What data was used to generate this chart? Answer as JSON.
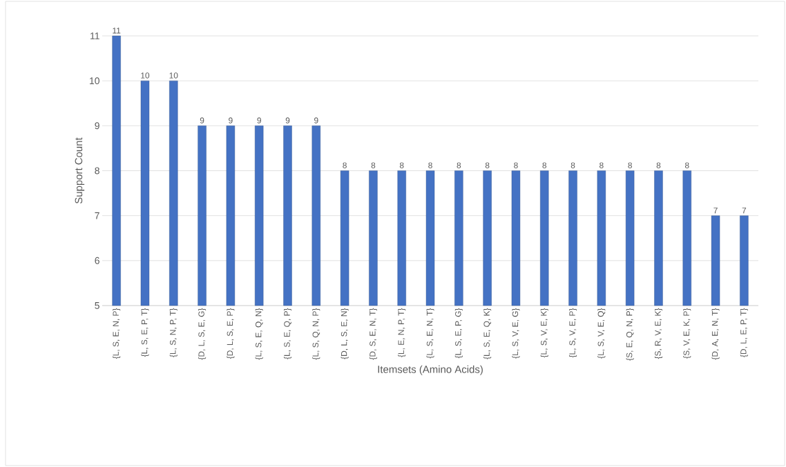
{
  "chart_data": {
    "type": "bar",
    "xlabel": "Itemsets (Amino Acids)",
    "ylabel": "Support Count",
    "categories": [
      "{L, S, E, N, P}",
      "{L, S, E, P, T}",
      "{L, S, N, P, T}",
      "{D, L, S, E, G}",
      "{D, L, S, E, P}",
      "{L, S, E, Q, N}",
      "{L, S, E, Q, P}",
      "{L, S, Q, N, P}",
      "{D, L, S, E, N}",
      "{D, S, E, N, T}",
      "{L, E, N, P, T}",
      "{L, S, E, N, T}",
      "{L, S, E, P, G}",
      "{L, S, E, Q, K}",
      "{L, S, V, E, G}",
      "{L, S, V, E, K}",
      "{L, S, V, E, P}",
      "{L, S, V, E, Q}",
      "{S, E, Q, N, P}",
      "{S, R, V, E, K}",
      "{S, V, E, K, P}",
      "{D, A, E, N, T}",
      "{D, L, E, P, T}"
    ],
    "values": [
      11,
      10,
      10,
      9,
      9,
      9,
      9,
      9,
      8,
      8,
      8,
      8,
      8,
      8,
      8,
      8,
      8,
      8,
      8,
      8,
      8,
      7,
      7
    ],
    "color": "#4472c4",
    "ylim": [
      5,
      11
    ],
    "yticks": [
      5,
      6,
      7,
      8,
      9,
      10,
      11
    ],
    "grid": "y",
    "data_labels": true
  }
}
